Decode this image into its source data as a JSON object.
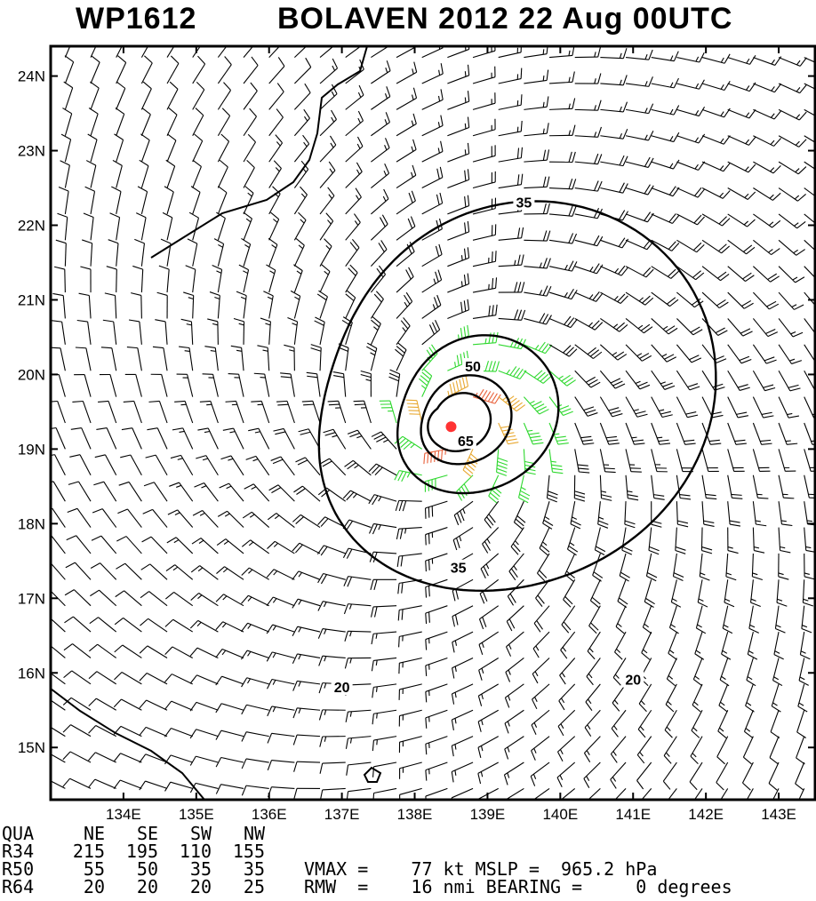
{
  "chart_data": {
    "type": "wind_field_map",
    "title_id": "WP1612",
    "title_main": "BOLAVEN 2012 22 Aug 00UTC",
    "x_ticks": [
      "134E",
      "135E",
      "136E",
      "137E",
      "138E",
      "139E",
      "140E",
      "141E",
      "142E",
      "143E"
    ],
    "y_ticks": [
      "24N",
      "23N",
      "22N",
      "21N",
      "20N",
      "19N",
      "18N",
      "17N",
      "16N",
      "15N"
    ],
    "xlim": [
      133.0,
      143.5
    ],
    "ylim": [
      14.3,
      24.4
    ],
    "center": {
      "lon": 138.5,
      "lat": 19.3
    },
    "contours": [
      {
        "label": "20",
        "level": 20
      },
      {
        "label": "35",
        "level": 35
      },
      {
        "label": "50",
        "level": 50
      },
      {
        "label": "65",
        "level": 65
      }
    ],
    "contour_label_marks": [
      {
        "label": "20",
        "lon": 137.0,
        "lat": 15.8
      },
      {
        "label": "20",
        "lon": 141.0,
        "lat": 15.9
      },
      {
        "label": "35",
        "lon": 139.5,
        "lat": 22.3
      },
      {
        "label": "35",
        "lon": 138.6,
        "lat": 17.4
      },
      {
        "label": "50",
        "lon": 138.8,
        "lat": 20.1
      },
      {
        "label": "65",
        "lon": 138.7,
        "lat": 19.1
      }
    ],
    "wind_colors": {
      "lt34": "#000000",
      "34to49": "#2ed82e",
      "50to63": "#e8a830",
      "ge64": "#e8603a",
      "center": "#ff3333"
    },
    "radii_table": {
      "header": [
        "QUA",
        "NE",
        "SE",
        "SW",
        "NW"
      ],
      "rows": [
        {
          "label": "R34",
          "values": [
            "215",
            "195",
            "110",
            "155"
          ]
        },
        {
          "label": "R50",
          "values": [
            "55",
            "50",
            "35",
            "35"
          ]
        },
        {
          "label": "R64",
          "values": [
            "20",
            "20",
            "20",
            "25"
          ]
        }
      ]
    },
    "vmax_text": "VMAX =    77 kt MSLP =  965.2 hPa",
    "rmw_text": "RMW  =    16 nmi BEARING =     0 degrees"
  }
}
